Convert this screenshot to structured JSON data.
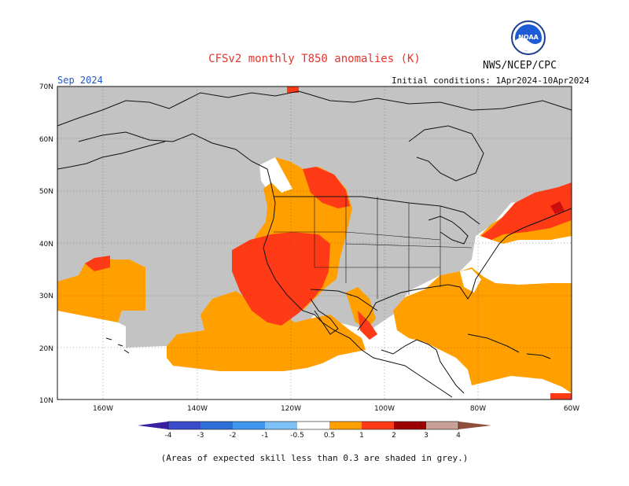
{
  "header": {
    "title": "CFSv2 monthly T850 anomalies (K)",
    "agency": "NWS/NCEP/CPC",
    "month": "Sep 2024",
    "initial_conditions": "Initial conditions: 1Apr2024-10Apr2024",
    "logo_text": "NOAA"
  },
  "map": {
    "lat_labels": [
      "70N",
      "60N",
      "50N",
      "40N",
      "30N",
      "20N",
      "10N"
    ],
    "lon_labels": [
      "160W",
      "140W",
      "120W",
      "100W",
      "80W",
      "60W"
    ],
    "extent": {
      "lon_west": -170,
      "lon_east": -60,
      "lat_south": 10,
      "lat_north": 70
    },
    "features": {
      "skill_mask": "grey",
      "anomaly_regions": [
        {
          "name": "pacific-subtropics",
          "level": "0.5-1"
        },
        {
          "name": "west-coast-us",
          "level": "1-2"
        },
        {
          "name": "gulf-of-mexico-caribbean",
          "level": "0.5-1"
        },
        {
          "name": "northeast-us",
          "level": "1-2"
        },
        {
          "name": "western-atlantic",
          "level": "0.5-1"
        }
      ]
    }
  },
  "colorbar": {
    "labels": [
      "-4",
      "-3",
      "-2",
      "-1",
      "-0.5",
      "0.5",
      "1",
      "2",
      "3",
      "4"
    ],
    "colors": [
      "#3a1fa3",
      "#3a4ccc",
      "#2f6fd9",
      "#3f97ee",
      "#7ec1f7",
      "#ffffff",
      "#ff9f00",
      "#ff3a17",
      "#cc0e0e",
      "#9b0000",
      "#c9a097",
      "#8f4f3d"
    ]
  },
  "footnote": "(Areas of expected skill less than 0.3 are shaded in grey.)",
  "colors": {
    "title": "#e8332b",
    "month": "#2255cc",
    "grey": "#c3c3c3",
    "orange": "#ff9f00",
    "red": "#ff3a17",
    "darkred": "#cc0e0e"
  }
}
